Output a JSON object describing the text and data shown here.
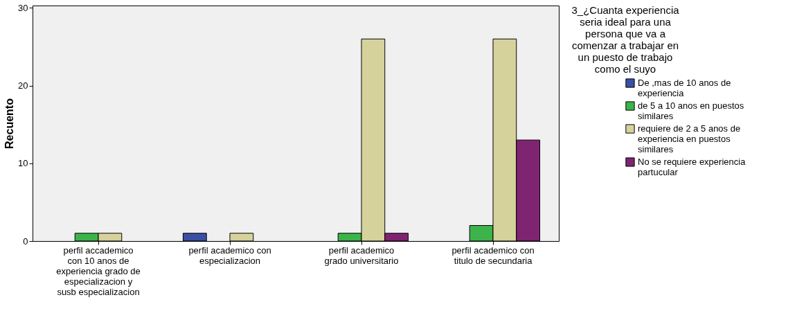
{
  "chart_data": {
    "type": "bar",
    "ylabel": "Recuento",
    "legend_title": "3_¿Cuanta experiencia seria ideal para una persona que va a comenzar a trabajar en un puesto de trabajo como el suyo",
    "categories": [
      "perfil accademico con 10 anos de experiencia grado de especializacion y susb especializacion",
      "perfil academico con especializacion",
      "perfil academico grado universitario",
      "perfil academico con titulo de secundaria"
    ],
    "series": [
      {
        "name": "De ,mas de 10 anos de experiencia",
        "color": "#3a50a4",
        "values": [
          null,
          1,
          null,
          null
        ]
      },
      {
        "name": "de 5  a 10 anos en puestos similares",
        "color": "#3cb44b",
        "values": [
          1,
          null,
          1,
          2
        ]
      },
      {
        "name": "requiere de 2 a 5 anos de experiencia en puestos similares",
        "color": "#d6d29c",
        "values": [
          1,
          1,
          26,
          26
        ]
      },
      {
        "name": "No se requiere experiencia partucular",
        "color": "#7f2470",
        "values": [
          null,
          null,
          1,
          13
        ]
      }
    ],
    "ylim": [
      0,
      30.3
    ],
    "yticks": [
      0,
      10,
      20,
      30
    ],
    "grid": false,
    "legend": "right"
  }
}
